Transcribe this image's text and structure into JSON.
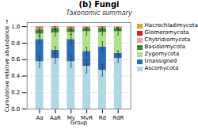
{
  "chart_data": {
    "type": "bar",
    "stacked": true,
    "title": "(b) Fungi",
    "subtitle": "Taxonomic summary",
    "xlabel": "Group",
    "ylabel": "Cumulative relative abundance",
    "categories": [
      "Aa",
      "AaR",
      "Mv",
      "MvR",
      "Rd",
      "RdR"
    ],
    "series": [
      {
        "name": "Ascomycota",
        "color": "#add8e6",
        "values": [
          0.575,
          0.615,
          0.575,
          0.52,
          0.47,
          0.615
        ],
        "errors": [
          0.07,
          0.06,
          0.07,
          0.08,
          0.07,
          0.05
        ]
      },
      {
        "name": "Unassigned",
        "color": "#2a6db5",
        "values": [
          0.27,
          0.1,
          0.27,
          0.18,
          0.285,
          0.06
        ],
        "errors": [
          0.05,
          0.04,
          0.06,
          0.05,
          0.06,
          0.03
        ]
      },
      {
        "name": "Zygomycota",
        "color": "#b2e08a",
        "values": [
          0.065,
          0.21,
          0.085,
          0.24,
          0.175,
          0.265
        ],
        "errors": [
          0.03,
          0.04,
          0.025,
          0.04,
          0.03,
          0.04
        ]
      },
      {
        "name": "Basidiomycota",
        "color": "#2e8b2e",
        "values": [
          0.055,
          0.055,
          0.045,
          0.04,
          0.05,
          0.04
        ],
        "errors": [
          0.015,
          0.015,
          0.012,
          0.01,
          0.015,
          0.01
        ]
      },
      {
        "name": "Chytridiomycota",
        "color": "#f4a0b0",
        "values": [
          0.02,
          0.01,
          0.01,
          0.008,
          0.01,
          0.008
        ]
      },
      {
        "name": "Glomeromycota",
        "color": "#cc2222",
        "values": [
          0.01,
          0.008,
          0.008,
          0.006,
          0.008,
          0.006
        ]
      },
      {
        "name": "Hacrochladimycota",
        "color": "#e8a020",
        "values": [
          0.005,
          0.002,
          0.007,
          0.006,
          0.002,
          0.006
        ]
      }
    ],
    "ylim": [
      0.0,
      1.05
    ],
    "yticks": [
      {
        "value": 0.0,
        "label": "0.0"
      },
      0.2,
      0.4,
      0.6,
      0.8,
      {
        "value": 1.0,
        "label": "1.0"
      }
    ],
    "grid": true,
    "legend": "right"
  }
}
